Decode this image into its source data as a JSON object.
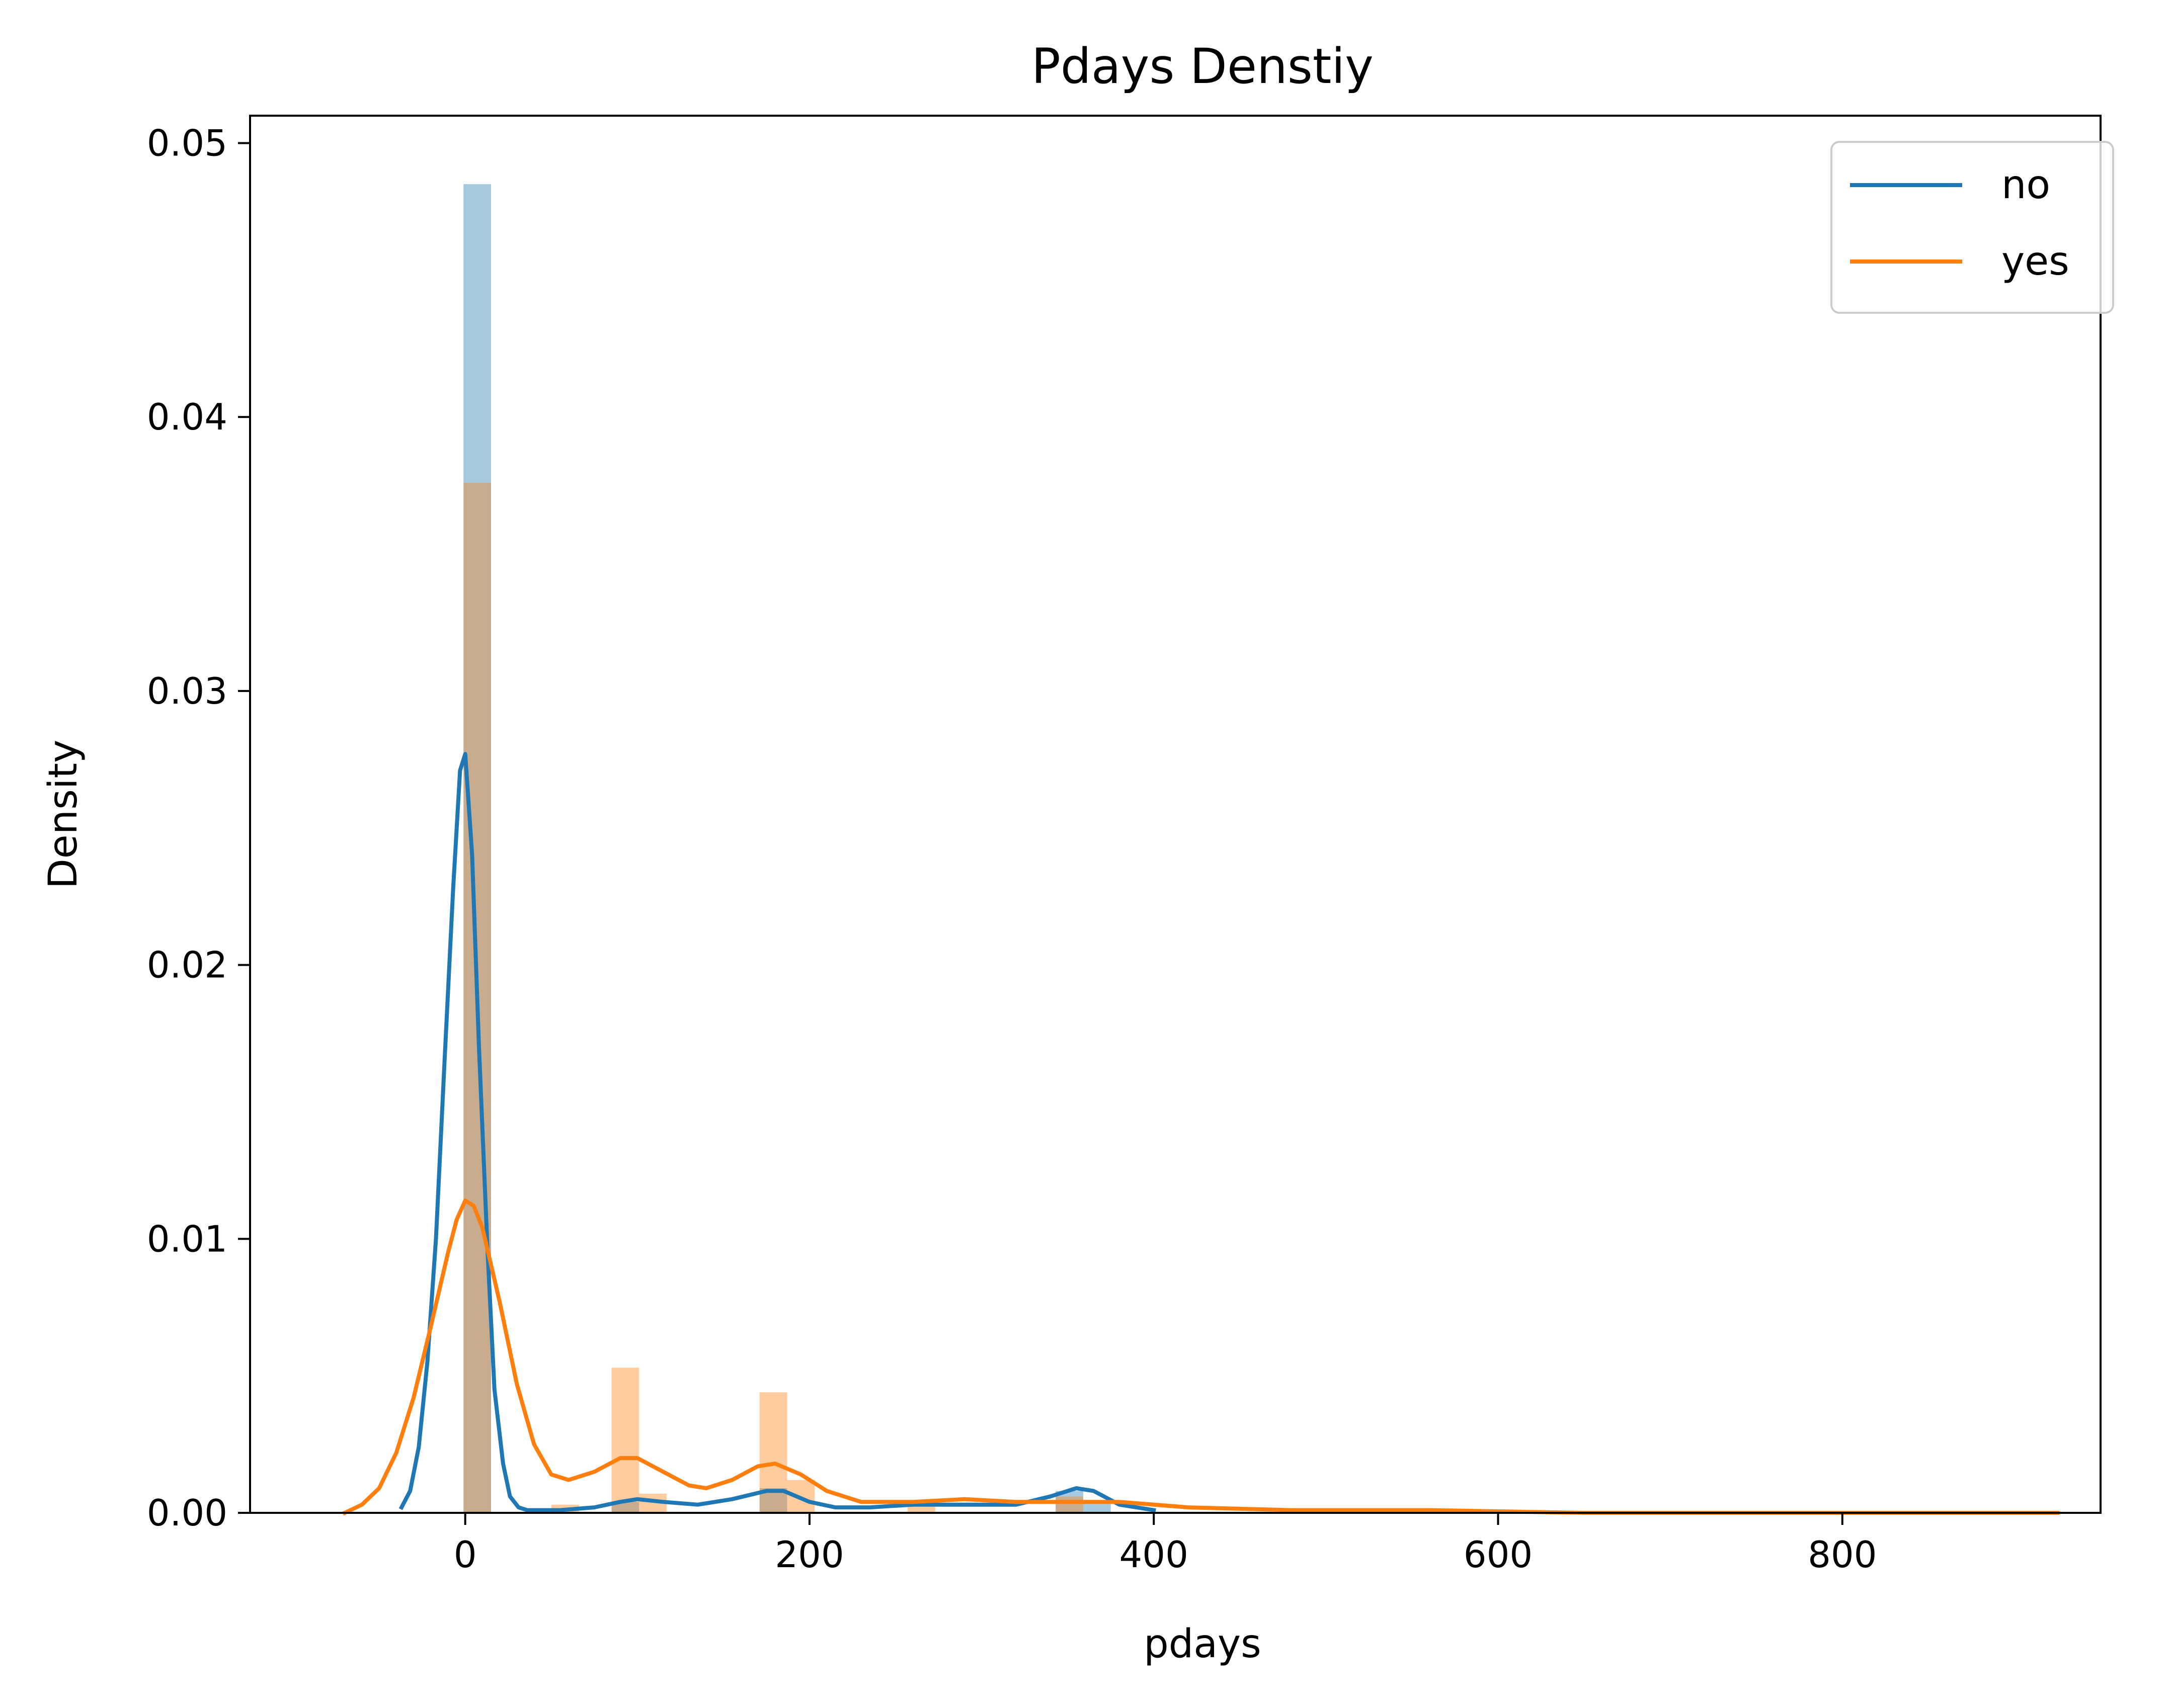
{
  "chart_data": {
    "type": "area",
    "title": "Pdays Denstiy",
    "xlabel": "pdays",
    "ylabel": "Density",
    "xlim": [
      -125,
      950
    ],
    "ylim": [
      0,
      0.051
    ],
    "xticks": [
      0,
      200,
      400,
      600,
      800
    ],
    "yticks": [
      0.0,
      0.01,
      0.02,
      0.03,
      0.04,
      0.05
    ],
    "ytick_labels": [
      "0.00",
      "0.01",
      "0.02",
      "0.03",
      "0.04",
      "0.05"
    ],
    "grid": false,
    "legend": {
      "position": "top-right",
      "entries": [
        "no",
        "yes"
      ]
    },
    "histograms": [
      {
        "series": "no",
        "color": "#1f77b4",
        "bins": [
          {
            "x0": -1,
            "x1": 15,
            "y": 0.0485
          },
          {
            "x0": 85,
            "x1": 101,
            "y": 0.0004
          },
          {
            "x0": 171,
            "x1": 187,
            "y": 0.0009
          },
          {
            "x0": 343,
            "x1": 359,
            "y": 0.0008
          },
          {
            "x0": 359,
            "x1": 375,
            "y": 0.0004
          }
        ]
      },
      {
        "series": "yes",
        "color": "#ff7f0e",
        "bins": [
          {
            "x0": -1,
            "x1": 15,
            "y": 0.0376
          },
          {
            "x0": 50,
            "x1": 66,
            "y": 0.0003
          },
          {
            "x0": 85,
            "x1": 101,
            "y": 0.0053
          },
          {
            "x0": 101,
            "x1": 117,
            "y": 0.0007
          },
          {
            "x0": 171,
            "x1": 187,
            "y": 0.0044
          },
          {
            "x0": 187,
            "x1": 203,
            "y": 0.0012
          },
          {
            "x0": 257,
            "x1": 273,
            "y": 0.0004
          },
          {
            "x0": 343,
            "x1": 359,
            "y": 0.0006
          }
        ]
      }
    ],
    "series": [
      {
        "name": "no",
        "color": "#1f77b4",
        "x": [
          -37,
          -32,
          -27,
          -22,
          -17,
          -12,
          -7,
          -3,
          0,
          4,
          8,
          13,
          17,
          22,
          26,
          31,
          36,
          42,
          55,
          75,
          90,
          100,
          115,
          135,
          155,
          175,
          185,
          200,
          215,
          235,
          260,
          290,
          320,
          340,
          355,
          365,
          380,
          400
        ],
        "y": [
          0.0002,
          0.0008,
          0.0024,
          0.0055,
          0.01,
          0.0165,
          0.0228,
          0.0271,
          0.0277,
          0.024,
          0.017,
          0.0095,
          0.0045,
          0.0018,
          0.0006,
          0.0002,
          0.0001,
          0.0001,
          0.0001,
          0.0002,
          0.0004,
          0.0005,
          0.0004,
          0.0003,
          0.0005,
          0.0008,
          0.0008,
          0.0004,
          0.0002,
          0.0002,
          0.0003,
          0.0003,
          0.0003,
          0.0006,
          0.0009,
          0.0008,
          0.0003,
          0.0001
        ]
      },
      {
        "name": "yes",
        "color": "#ff7f0e",
        "x": [
          -70,
          -60,
          -50,
          -40,
          -30,
          -20,
          -10,
          -5,
          0,
          5,
          10,
          20,
          30,
          40,
          50,
          60,
          75,
          90,
          100,
          115,
          130,
          140,
          155,
          170,
          180,
          195,
          210,
          230,
          260,
          290,
          320,
          350,
          380,
          420,
          480,
          560,
          650,
          750,
          850,
          925
        ],
        "y": [
          0.0,
          0.0003,
          0.0009,
          0.0022,
          0.0042,
          0.0068,
          0.0095,
          0.0107,
          0.0114,
          0.0112,
          0.0104,
          0.0077,
          0.0047,
          0.0025,
          0.0014,
          0.0012,
          0.0015,
          0.002,
          0.002,
          0.0015,
          0.001,
          0.0009,
          0.0012,
          0.0017,
          0.0018,
          0.0014,
          0.0008,
          0.0004,
          0.0004,
          0.0005,
          0.0004,
          0.0004,
          0.0004,
          0.0002,
          0.0001,
          0.0001,
          0.0,
          0.0,
          0.0,
          0.0
        ]
      }
    ]
  }
}
